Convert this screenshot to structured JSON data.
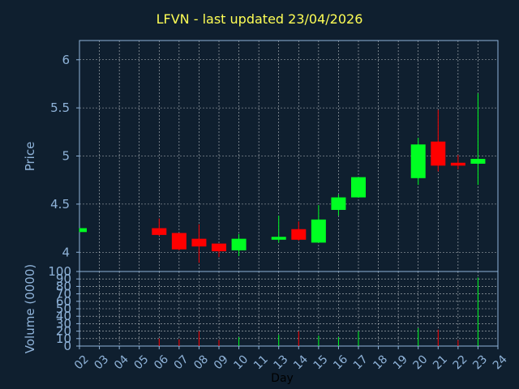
{
  "chart_data": {
    "type": "candlestick",
    "title": "LFVN - last updated 23/04/2026",
    "xlabel": "Day",
    "x_ticks": [
      "02",
      "03",
      "04",
      "05",
      "06",
      "07",
      "08",
      "09",
      "10",
      "11",
      "13",
      "14",
      "15",
      "16",
      "17",
      "18",
      "19",
      "20",
      "21",
      "22",
      "23",
      "24"
    ],
    "price_panel": {
      "ylabel": "Price",
      "ylim": [
        3.8,
        6.2
      ],
      "y_ticks": [
        "4",
        "4.5",
        "5",
        "5.5",
        "6"
      ],
      "y_tick_values": [
        4,
        4.5,
        5,
        5.5,
        6
      ],
      "candles": [
        {
          "day": "02",
          "open": 4.21,
          "close": 4.25,
          "high": 4.25,
          "low": 4.21
        },
        {
          "day": "06",
          "open": 4.25,
          "close": 4.18,
          "high": 4.35,
          "low": 4.17
        },
        {
          "day": "07",
          "open": 4.2,
          "close": 4.03,
          "high": 4.2,
          "low": 4.02
        },
        {
          "day": "08",
          "open": 4.14,
          "close": 4.06,
          "high": 4.29,
          "low": 3.89
        },
        {
          "day": "09",
          "open": 4.09,
          "close": 4.01,
          "high": 4.09,
          "low": 3.95
        },
        {
          "day": "10",
          "open": 4.02,
          "close": 4.14,
          "high": 4.19,
          "low": 3.96
        },
        {
          "day": "13",
          "open": 4.13,
          "close": 4.16,
          "high": 4.38,
          "low": 4.1
        },
        {
          "day": "14",
          "open": 4.24,
          "close": 4.13,
          "high": 4.32,
          "low": 4.12
        },
        {
          "day": "15",
          "open": 4.1,
          "close": 4.34,
          "high": 4.49,
          "low": 4.1
        },
        {
          "day": "16",
          "open": 4.44,
          "close": 4.57,
          "high": 4.6,
          "low": 4.38
        },
        {
          "day": "17",
          "open": 4.57,
          "close": 4.78,
          "high": 4.78,
          "low": 4.57
        },
        {
          "day": "20",
          "open": 4.77,
          "close": 5.12,
          "high": 5.19,
          "low": 4.7
        },
        {
          "day": "21",
          "open": 5.15,
          "close": 4.9,
          "high": 5.48,
          "low": 4.84
        },
        {
          "day": "22",
          "open": 4.93,
          "close": 4.9,
          "high": 5.01,
          "low": 4.86
        },
        {
          "day": "23",
          "open": 4.92,
          "close": 4.97,
          "high": 5.65,
          "low": 4.7
        }
      ]
    },
    "volume_panel": {
      "ylabel": "Volume (0000)",
      "ylim": [
        0,
        100
      ],
      "y_ticks": [
        "0",
        "10",
        "20",
        "30",
        "40",
        "50",
        "60",
        "70",
        "80",
        "90",
        "100"
      ],
      "y_tick_values": [
        0,
        10,
        20,
        30,
        40,
        50,
        60,
        70,
        80,
        90,
        100
      ],
      "bars": [
        {
          "day": "06",
          "value": 10,
          "direction": "down"
        },
        {
          "day": "07",
          "value": 9,
          "direction": "down"
        },
        {
          "day": "08",
          "value": 20,
          "direction": "down"
        },
        {
          "day": "09",
          "value": 8,
          "direction": "down"
        },
        {
          "day": "10",
          "value": 12,
          "direction": "up"
        },
        {
          "day": "13",
          "value": 15,
          "direction": "up"
        },
        {
          "day": "14",
          "value": 20,
          "direction": "down"
        },
        {
          "day": "15",
          "value": 14,
          "direction": "up"
        },
        {
          "day": "16",
          "value": 12,
          "direction": "up"
        },
        {
          "day": "17",
          "value": 20,
          "direction": "up"
        },
        {
          "day": "20",
          "value": 24,
          "direction": "up"
        },
        {
          "day": "21",
          "value": 22,
          "direction": "down"
        },
        {
          "day": "22",
          "value": 8,
          "direction": "down"
        },
        {
          "day": "23",
          "value": 92,
          "direction": "up"
        }
      ]
    },
    "colors": {
      "background": "#0f1f2f",
      "up": "#00ff22",
      "down": "#ff0000",
      "axis_text": "#8fb3d9",
      "title": "#ffff55",
      "grid": "#ffffff",
      "xlabel": "#000000"
    },
    "grid": true
  }
}
